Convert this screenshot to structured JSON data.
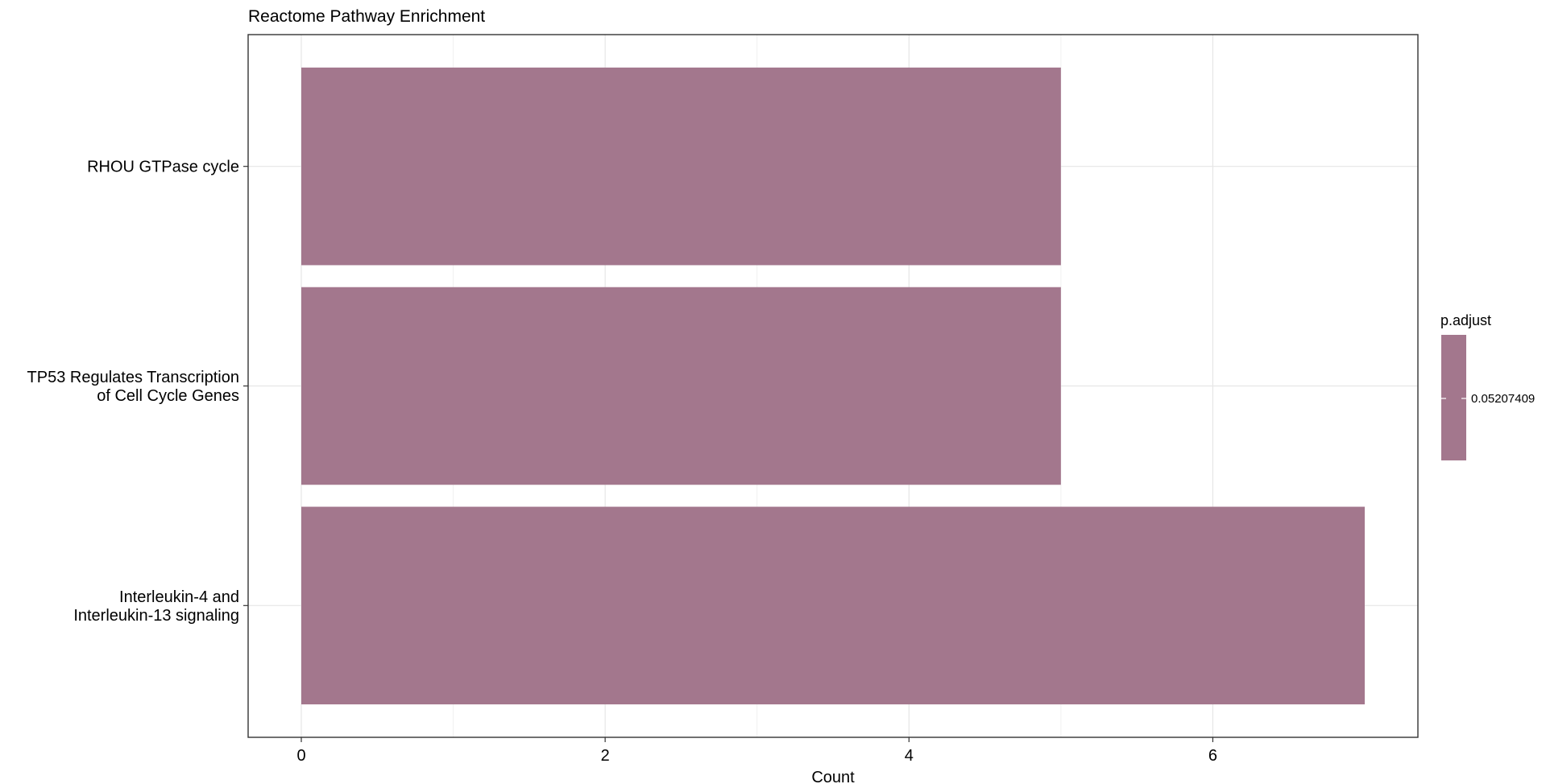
{
  "chart_data": {
    "type": "bar",
    "orientation": "horizontal",
    "title": "Reactome Pathway Enrichment",
    "xlabel": "Count",
    "ylabel": "",
    "categories": [
      [
        "Interleukin-4 and",
        "Interleukin-13 signaling"
      ],
      [
        "TP53 Regulates Transcription",
        "of Cell Cycle Genes"
      ],
      [
        "RHOU GTPase cycle"
      ]
    ],
    "values": [
      7,
      5,
      5
    ],
    "xlim": [
      -0.35,
      7.35
    ],
    "xticks": [
      0,
      2,
      4,
      6
    ],
    "grid": true,
    "bar_color": "#a3778d",
    "legend": {
      "title": "p.adjust",
      "label": "0.05207409",
      "placement": "right",
      "color": "#a3778d"
    }
  }
}
